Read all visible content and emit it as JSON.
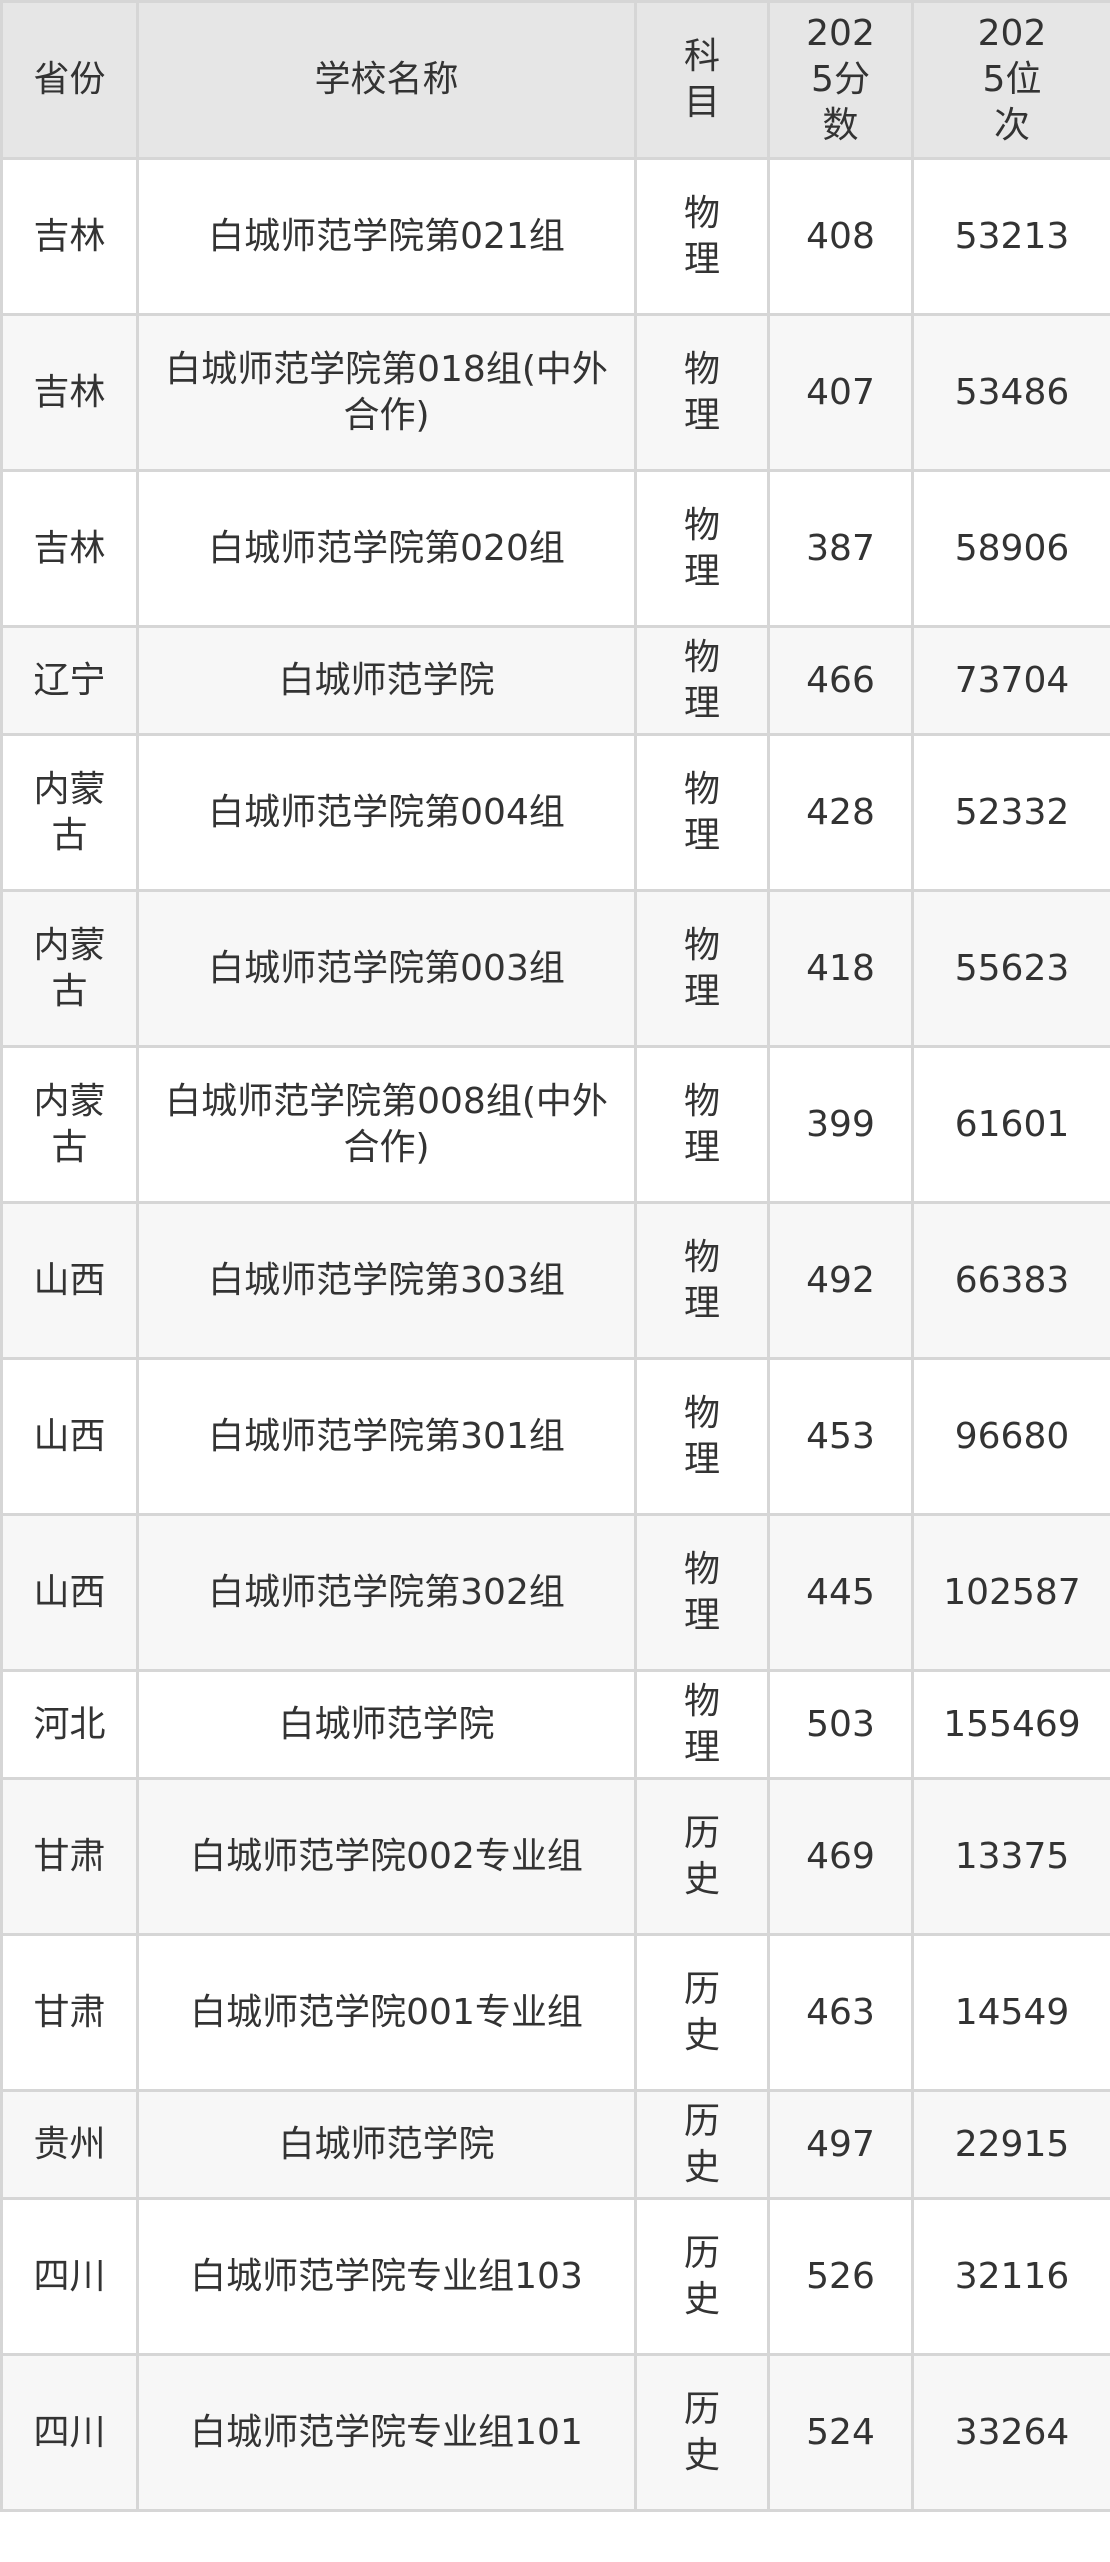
{
  "table": {
    "headers": [
      "省份",
      "学校名称",
      "科目",
      "2025分数",
      "2025位次"
    ],
    "rows": [
      [
        "吉林",
        "白城师范学院第021组",
        "物理",
        "408",
        "53213"
      ],
      [
        "吉林",
        "白城师范学院第018组(中外合作)",
        "物理",
        "407",
        "53486"
      ],
      [
        "吉林",
        "白城师范学院第020组",
        "物理",
        "387",
        "58906"
      ],
      [
        "辽宁",
        "白城师范学院",
        "物理",
        "466",
        "73704"
      ],
      [
        "内蒙古",
        "白城师范学院第004组",
        "物理",
        "428",
        "52332"
      ],
      [
        "内蒙古",
        "白城师范学院第003组",
        "物理",
        "418",
        "55623"
      ],
      [
        "内蒙古",
        "白城师范学院第008组(中外合作)",
        "物理",
        "399",
        "61601"
      ],
      [
        "山西",
        "白城师范学院第303组",
        "物理",
        "492",
        "66383"
      ],
      [
        "山西",
        "白城师范学院第301组",
        "物理",
        "453",
        "96680"
      ],
      [
        "山西",
        "白城师范学院第302组",
        "物理",
        "445",
        "102587"
      ],
      [
        "河北",
        "白城师范学院",
        "物理",
        "503",
        "155469"
      ],
      [
        "甘肃",
        "白城师范学院002专业组",
        "历史",
        "469",
        "13375"
      ],
      [
        "甘肃",
        "白城师范学院001专业组",
        "历史",
        "463",
        "14549"
      ],
      [
        "贵州",
        "白城师范学院",
        "历史",
        "497",
        "22915"
      ],
      [
        "四川",
        "白城师范学院专业组103",
        "历史",
        "526",
        "32116"
      ],
      [
        "四川",
        "白城师范学院专业组101",
        "历史",
        "524",
        "33264"
      ]
    ]
  }
}
